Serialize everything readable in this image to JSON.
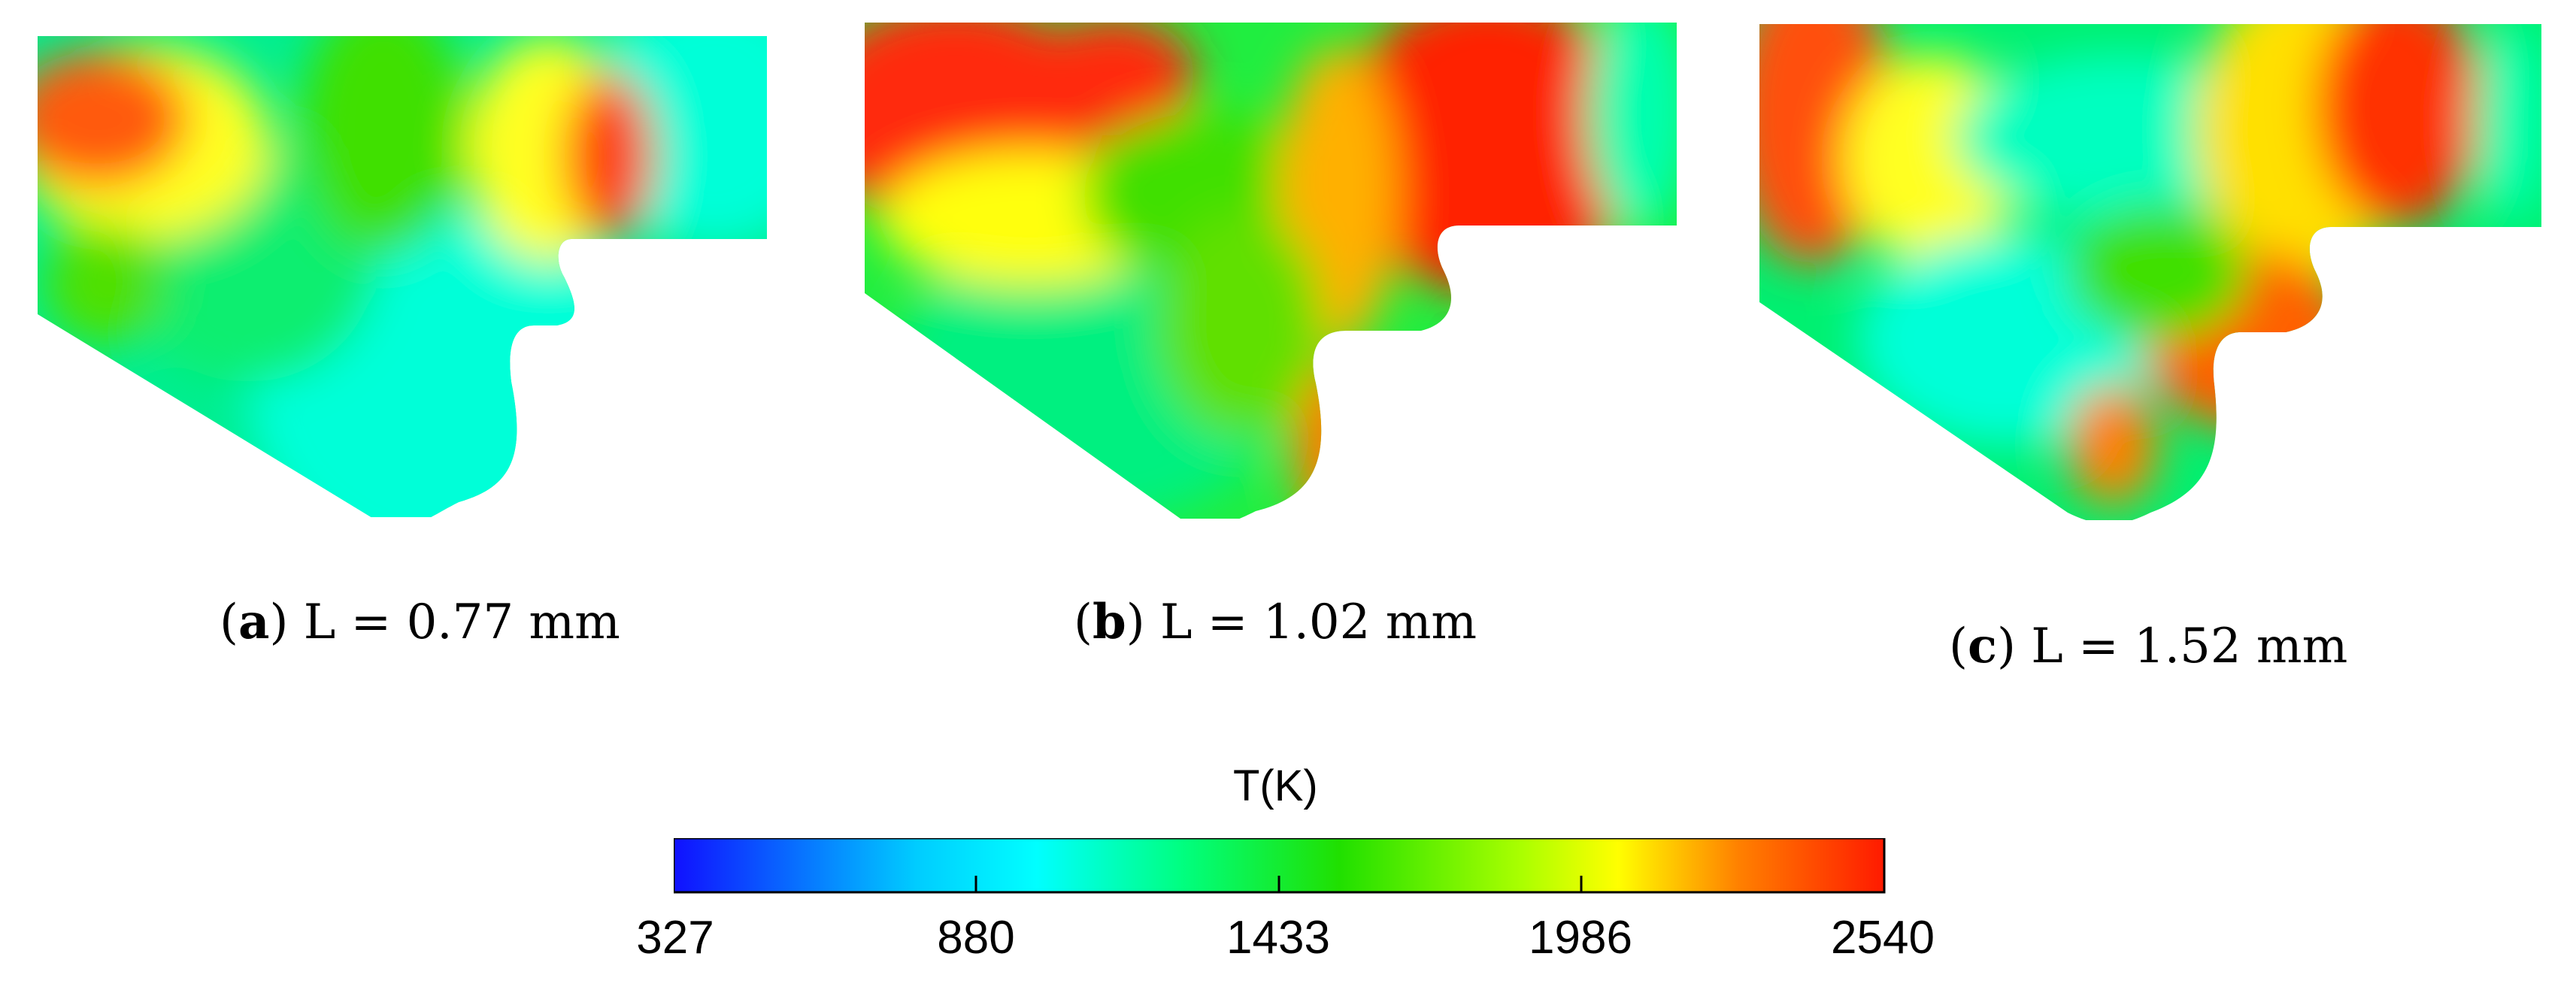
{
  "panels": [
    {
      "letter": "a",
      "text": " L = 0.77 mm"
    },
    {
      "letter": "b",
      "text": " L = 1.02 mm"
    },
    {
      "letter": "c",
      "text": " L = 1.52 mm"
    }
  ],
  "colorbar": {
    "title": "T(K)",
    "min": 327,
    "max": 2540,
    "ticks": [
      "327",
      "880",
      "1433",
      "1986",
      "2540"
    ],
    "colors": [
      "#1010ff",
      "#00d0ff",
      "#00ffff",
      "#00ff80",
      "#20e000",
      "#ffff00",
      "#ff8000",
      "#ff2000"
    ]
  }
}
